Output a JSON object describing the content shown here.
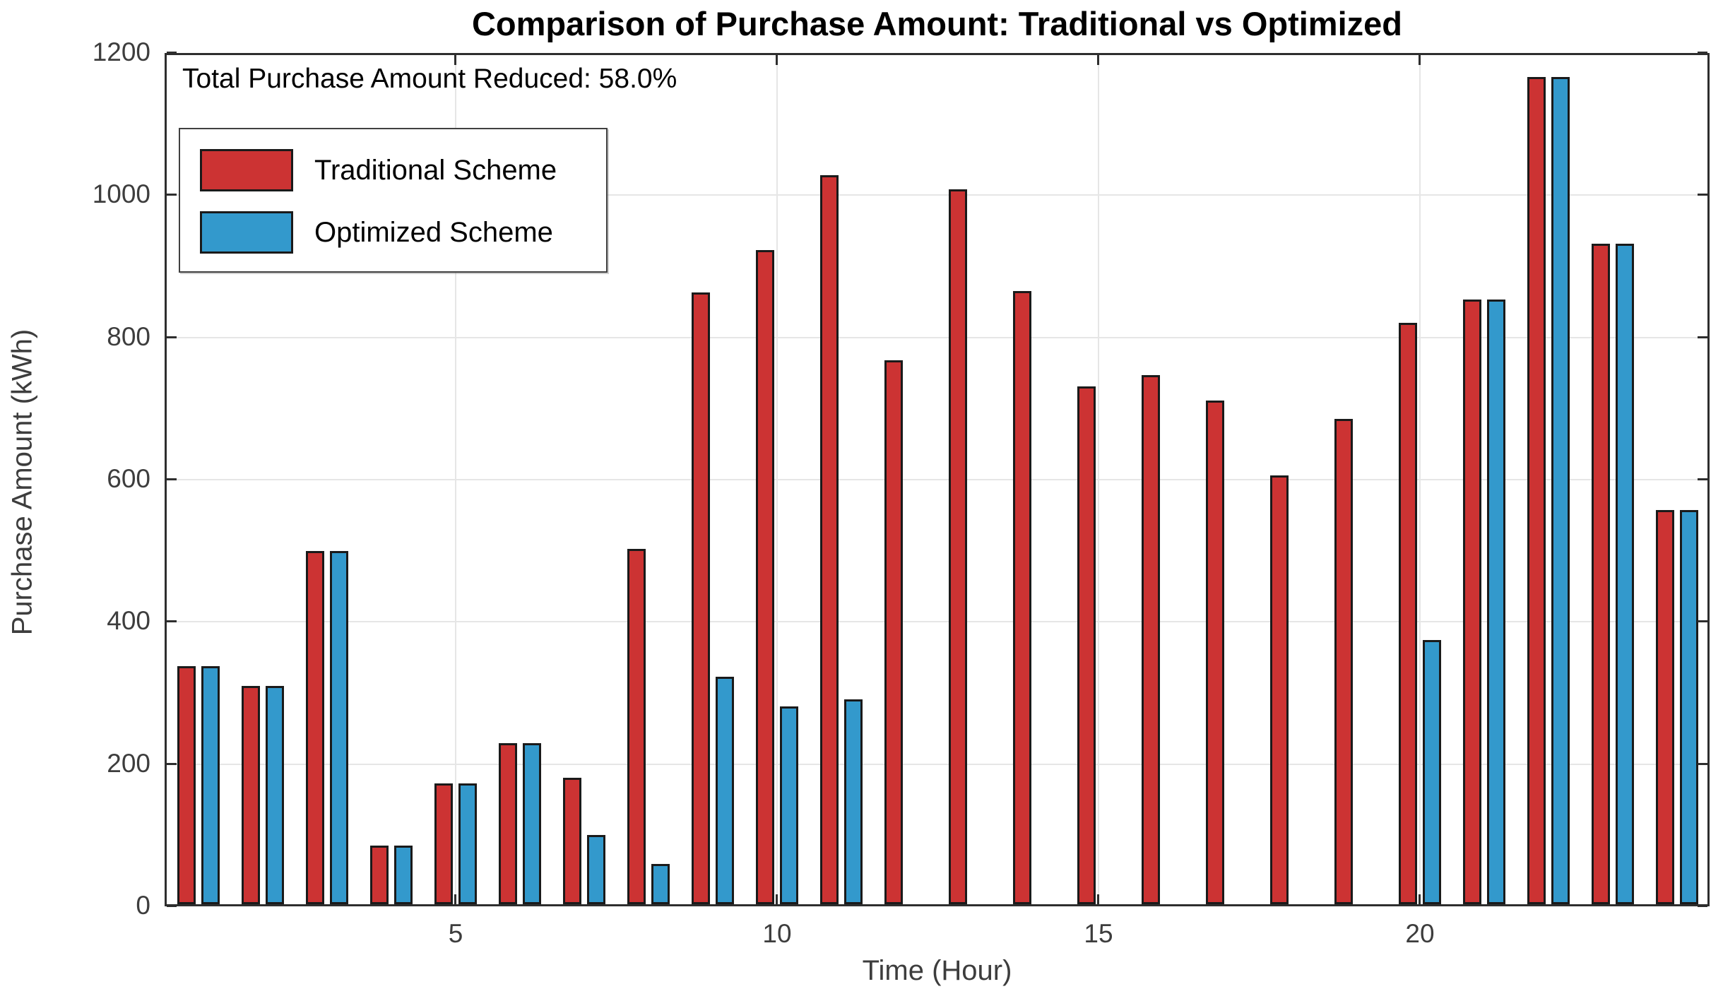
{
  "title": "Comparison of Purchase Amount: Traditional vs Optimized",
  "annotation": "Total Purchase Amount Reduced: 58.0%",
  "axes": {
    "x_label": "Time (Hour)",
    "y_label": "Purchase Amount (kWh)",
    "x_ticks": [
      5,
      10,
      15,
      20
    ],
    "y_ticks": [
      0,
      200,
      400,
      600,
      800,
      1000,
      1200
    ]
  },
  "legend": {
    "items": [
      {
        "label": "Traditional Scheme",
        "color": "#cc3333"
      },
      {
        "label": "Optimized Scheme",
        "color": "#3399cc"
      }
    ]
  },
  "colors": {
    "traditional": "#cc3333",
    "optimized": "#3399cc",
    "bar_edge": "#1a1a1a",
    "frame": "#2e2e2e",
    "gridline": "#e6e6e6",
    "tick_text": "#3d3d3d"
  },
  "chart_data": {
    "type": "bar",
    "title": "Comparison of Purchase Amount: Traditional vs Optimized",
    "xlabel": "Time (Hour)",
    "ylabel": "Purchase Amount (kWh)",
    "x": [
      1,
      2,
      3,
      4,
      5,
      6,
      7,
      8,
      9,
      10,
      11,
      12,
      13,
      14,
      15,
      16,
      17,
      18,
      19,
      20,
      21,
      22,
      23,
      24
    ],
    "series": [
      {
        "name": "Traditional Scheme",
        "color": "#cc3333",
        "values": [
          335,
          307,
          497,
          82,
          170,
          226,
          178,
          500,
          860,
          920,
          1025,
          765,
          1005,
          862,
          728,
          744,
          708,
          603,
          682,
          818,
          850,
          1163,
          929,
          554
        ]
      },
      {
        "name": "Optimized Scheme",
        "color": "#3399cc",
        "values": [
          335,
          307,
          497,
          82,
          170,
          226,
          97,
          57,
          320,
          278,
          288,
          0,
          0,
          0,
          0,
          0,
          0,
          0,
          0,
          372,
          850,
          1163,
          929,
          554
        ]
      }
    ],
    "ylim": [
      0,
      1200
    ],
    "xlim": [
      0.5,
      24.5
    ],
    "grid": true,
    "legend_position": "top-left",
    "annotation": "Total Purchase Amount Reduced: 58.0%"
  }
}
